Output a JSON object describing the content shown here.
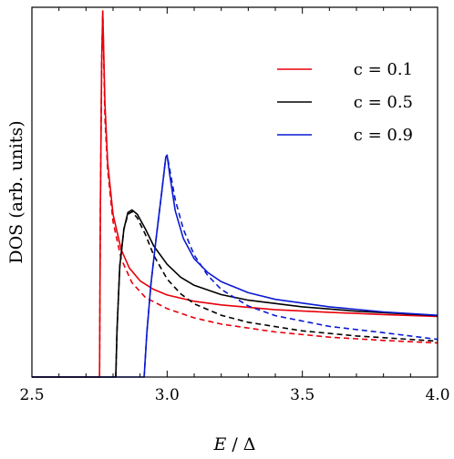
{
  "chart_data": {
    "type": "line",
    "xlabel": "E / Δ",
    "ylabel": "DOS (arb. units)",
    "xlim": [
      2.5,
      4.0
    ],
    "ylim": [
      0,
      1.0
    ],
    "xticks": [
      "2.5",
      "3.0",
      "3.5",
      "4.0"
    ],
    "grid": false,
    "legend_position": "top-right",
    "series": [
      {
        "name": "c = 0.1",
        "color": "#e8000b",
        "style": "solid",
        "points": [
          [
            2.5,
            0
          ],
          [
            2.75,
            0
          ],
          [
            2.75,
            0
          ],
          [
            2.753,
            0.45
          ],
          [
            2.758,
            0.85
          ],
          [
            2.762,
            0.99
          ],
          [
            2.77,
            0.74
          ],
          [
            2.78,
            0.58
          ],
          [
            2.8,
            0.44
          ],
          [
            2.83,
            0.345
          ],
          [
            2.86,
            0.295
          ],
          [
            2.9,
            0.26
          ],
          [
            2.95,
            0.237
          ],
          [
            3.0,
            0.222
          ],
          [
            3.1,
            0.205
          ],
          [
            3.2,
            0.195
          ],
          [
            3.4,
            0.182
          ],
          [
            3.6,
            0.175
          ],
          [
            3.8,
            0.169
          ],
          [
            4.0,
            0.164
          ]
        ]
      },
      {
        "name": "",
        "color": "#e8000b",
        "style": "dashed",
        "points": [
          [
            2.75,
            0
          ],
          [
            2.753,
            0.45
          ],
          [
            2.758,
            0.85
          ],
          [
            2.762,
            0.99
          ],
          [
            2.77,
            0.7
          ],
          [
            2.78,
            0.56
          ],
          [
            2.8,
            0.42
          ],
          [
            2.83,
            0.32
          ],
          [
            2.87,
            0.255
          ],
          [
            2.92,
            0.215
          ],
          [
            3.0,
            0.185
          ],
          [
            3.1,
            0.16
          ],
          [
            3.2,
            0.143
          ],
          [
            3.4,
            0.122
          ],
          [
            3.6,
            0.108
          ],
          [
            3.8,
            0.099
          ],
          [
            4.0,
            0.092
          ]
        ]
      },
      {
        "name": "c = 0.5",
        "color": "#000000",
        "style": "solid",
        "points": [
          [
            2.5,
            0
          ],
          [
            2.81,
            0
          ],
          [
            2.815,
            0.13
          ],
          [
            2.825,
            0.3
          ],
          [
            2.84,
            0.4
          ],
          [
            2.855,
            0.445
          ],
          [
            2.87,
            0.452
          ],
          [
            2.89,
            0.44
          ],
          [
            2.92,
            0.4
          ],
          [
            2.95,
            0.355
          ],
          [
            3.0,
            0.305
          ],
          [
            3.05,
            0.27
          ],
          [
            3.1,
            0.248
          ],
          [
            3.2,
            0.223
          ],
          [
            3.3,
            0.208
          ],
          [
            3.5,
            0.19
          ],
          [
            3.7,
            0.178
          ],
          [
            4.0,
            0.166
          ]
        ]
      },
      {
        "name": "",
        "color": "#000000",
        "style": "dashed",
        "points": [
          [
            2.81,
            0
          ],
          [
            2.815,
            0.13
          ],
          [
            2.825,
            0.3
          ],
          [
            2.84,
            0.4
          ],
          [
            2.855,
            0.44
          ],
          [
            2.87,
            0.447
          ],
          [
            2.89,
            0.43
          ],
          [
            2.92,
            0.385
          ],
          [
            2.95,
            0.33
          ],
          [
            3.0,
            0.265
          ],
          [
            3.05,
            0.225
          ],
          [
            3.1,
            0.198
          ],
          [
            3.2,
            0.167
          ],
          [
            3.3,
            0.148
          ],
          [
            3.5,
            0.125
          ],
          [
            3.7,
            0.111
          ],
          [
            4.0,
            0.097
          ]
        ]
      },
      {
        "name": "c = 0.9",
        "color": "#0a1ad0",
        "style": "solid",
        "points": [
          [
            2.5,
            0
          ],
          [
            2.915,
            0
          ],
          [
            2.925,
            0.12
          ],
          [
            2.94,
            0.25
          ],
          [
            2.96,
            0.38
          ],
          [
            2.98,
            0.5
          ],
          [
            2.995,
            0.595
          ],
          [
            3.0,
            0.6
          ],
          [
            3.01,
            0.545
          ],
          [
            3.03,
            0.45
          ],
          [
            3.06,
            0.375
          ],
          [
            3.1,
            0.32
          ],
          [
            3.15,
            0.283
          ],
          [
            3.2,
            0.258
          ],
          [
            3.3,
            0.228
          ],
          [
            3.4,
            0.21
          ],
          [
            3.6,
            0.19
          ],
          [
            3.8,
            0.176
          ],
          [
            4.0,
            0.167
          ]
        ]
      },
      {
        "name": "",
        "color": "#0a1ad0",
        "style": "dashed",
        "points": [
          [
            2.915,
            0
          ],
          [
            2.925,
            0.12
          ],
          [
            2.94,
            0.25
          ],
          [
            2.96,
            0.38
          ],
          [
            2.98,
            0.5
          ],
          [
            2.995,
            0.595
          ],
          [
            3.0,
            0.6
          ],
          [
            3.01,
            0.56
          ],
          [
            3.03,
            0.48
          ],
          [
            3.06,
            0.4
          ],
          [
            3.1,
            0.33
          ],
          [
            3.15,
            0.275
          ],
          [
            3.2,
            0.237
          ],
          [
            3.3,
            0.192
          ],
          [
            3.4,
            0.166
          ],
          [
            3.6,
            0.137
          ],
          [
            3.8,
            0.12
          ],
          [
            4.0,
            0.102
          ]
        ]
      }
    ]
  }
}
